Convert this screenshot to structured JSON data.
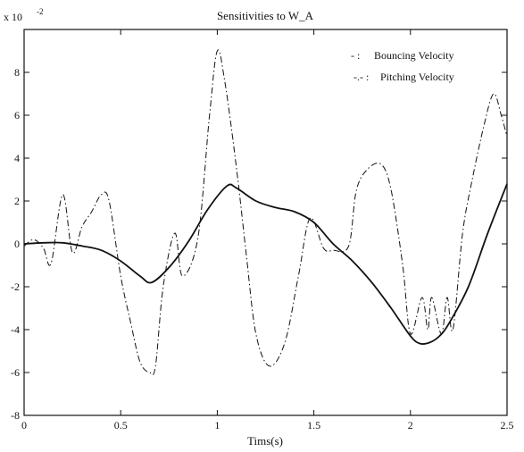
{
  "chart_data": {
    "type": "line",
    "title": "Sensitivities to W_A",
    "xlabel": "Tims(s)",
    "ylabel": "",
    "y_scale_base": "x 10",
    "y_scale_exponent": "-2",
    "xlim": [
      0,
      2.5
    ],
    "ylim": [
      -8,
      10
    ],
    "x_ticks": [
      0,
      0.5,
      1,
      1.5,
      2,
      2.5
    ],
    "x_tick_labels": [
      "0",
      "0.5",
      "1",
      "1.5",
      "2",
      "2.5"
    ],
    "y_ticks": [
      -8,
      -6,
      -4,
      -2,
      0,
      2,
      4,
      6,
      8
    ],
    "y_tick_labels": [
      "-8",
      "-6",
      "-4",
      "-2",
      "0",
      "2",
      "4",
      "6",
      "8"
    ],
    "grid": false,
    "legend_position": "top-right",
    "legend": [
      {
        "marker": "- :",
        "label": "Bouncing Velocity"
      },
      {
        "marker": "-.- :",
        "label": "Pitching Velocity"
      }
    ],
    "series": [
      {
        "name": "Bouncing Velocity",
        "style": "solid",
        "x": [
          0,
          0.1,
          0.2,
          0.3,
          0.4,
          0.5,
          0.6,
          0.66,
          0.75,
          0.85,
          0.95,
          1.05,
          1.1,
          1.2,
          1.3,
          1.4,
          1.5,
          1.6,
          1.7,
          1.8,
          1.9,
          2.0,
          2.05,
          2.1,
          2.15,
          2.2,
          2.3,
          2.4,
          2.5
        ],
        "y": [
          0,
          0.05,
          0.05,
          -0.1,
          -0.3,
          -0.8,
          -1.5,
          -1.8,
          -1.1,
          0.1,
          1.6,
          2.7,
          2.6,
          2.0,
          1.7,
          1.5,
          1.0,
          0.0,
          -0.8,
          -1.8,
          -3.0,
          -4.3,
          -4.65,
          -4.6,
          -4.3,
          -3.7,
          -2.0,
          0.5,
          2.8
        ]
      },
      {
        "name": "Pitching Velocity",
        "style": "dashdot",
        "x": [
          0,
          0.05,
          0.1,
          0.14,
          0.2,
          0.25,
          0.3,
          0.35,
          0.4,
          0.44,
          0.5,
          0.55,
          0.6,
          0.65,
          0.68,
          0.72,
          0.78,
          0.82,
          0.9,
          0.96,
          1.0,
          1.04,
          1.1,
          1.15,
          1.2,
          1.27,
          1.35,
          1.42,
          1.48,
          1.55,
          1.6,
          1.68,
          1.72,
          1.78,
          1.85,
          1.9,
          1.96,
          2.0,
          2.06,
          2.09,
          2.11,
          2.16,
          2.19,
          2.22,
          2.27,
          2.32,
          2.38,
          2.43,
          2.47,
          2.5
        ],
        "y": [
          -0.1,
          0.2,
          -0.2,
          -0.9,
          2.3,
          -0.4,
          0.8,
          1.5,
          2.3,
          2.0,
          -1.5,
          -3.6,
          -5.5,
          -6.0,
          -5.7,
          -2.0,
          0.5,
          -1.5,
          0.3,
          6.0,
          9.0,
          7.5,
          3.5,
          -0.5,
          -4.2,
          -5.7,
          -4.6,
          -1.5,
          1.2,
          -0.2,
          -0.3,
          -0.1,
          2.5,
          3.5,
          3.7,
          2.5,
          -1.0,
          -4.2,
          -2.5,
          -4.0,
          -2.5,
          -4.2,
          -2.5,
          -4.0,
          0.5,
          3.0,
          5.5,
          7.0,
          6.0,
          5.0
        ]
      }
    ]
  }
}
